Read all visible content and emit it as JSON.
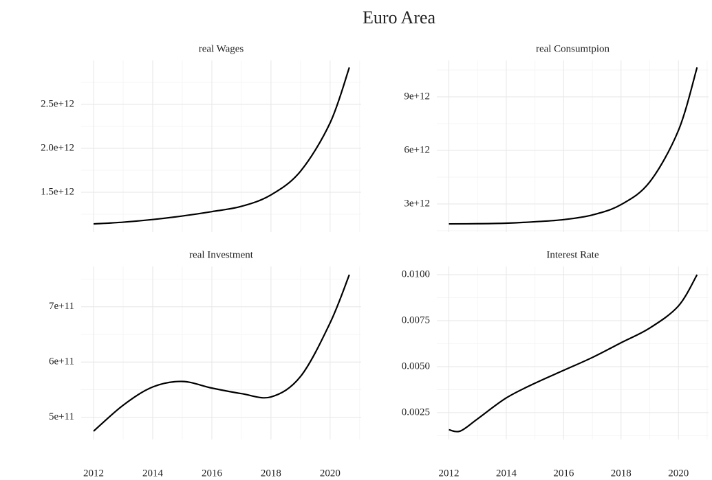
{
  "title": "Euro Area",
  "chart_data": [
    {
      "type": "line",
      "title": "real Wages",
      "x": [
        2012,
        2013,
        2014,
        2015,
        2016,
        2017,
        2018,
        2019,
        2020,
        2020.65
      ],
      "values": [
        1140000000000.0,
        1160000000000.0,
        1190000000000.0,
        1230000000000.0,
        1280000000000.0,
        1340000000000.0,
        1470000000000.0,
        1740000000000.0,
        2290000000000.0,
        2920000000000.0
      ],
      "color": "#000000",
      "xlim": [
        2011.58,
        2021.05
      ],
      "xticks": [
        2012,
        2014,
        2016,
        2018,
        2020
      ],
      "ylim": [
        1047000000000.0,
        3000000000000.0
      ],
      "yticks": [
        {
          "value": 1500000000000.0,
          "label": "1.5e+12"
        },
        {
          "value": 2000000000000.0,
          "label": "2.0e+12"
        },
        {
          "value": 2500000000000.0,
          "label": "2.5e+12"
        }
      ],
      "grid": true
    },
    {
      "type": "line",
      "title": "real Consumtpion",
      "x": [
        2012,
        2013,
        2014,
        2015,
        2016,
        2017,
        2018,
        2019,
        2020,
        2020.65
      ],
      "values": [
        1880000000000.0,
        1890000000000.0,
        1920000000000.0,
        2000000000000.0,
        2120000000000.0,
        2380000000000.0,
        2960000000000.0,
        4230000000000.0,
        7120000000000.0,
        10650000000000.0
      ],
      "color": "#000000",
      "xlim": [
        2011.58,
        2021.05
      ],
      "xticks": [
        2012,
        2014,
        2016,
        2018,
        2020
      ],
      "ylim": [
        1420000000000.0,
        11040000000000.0
      ],
      "yticks": [
        {
          "value": 3000000000000.0,
          "label": "3e+12"
        },
        {
          "value": 6000000000000.0,
          "label": "6e+12"
        },
        {
          "value": 9000000000000.0,
          "label": "9e+12"
        }
      ],
      "grid": true
    },
    {
      "type": "line",
      "title": "real Investment",
      "x": [
        2012,
        2013,
        2014,
        2015,
        2016,
        2017,
        2018,
        2019,
        2020,
        2020.65
      ],
      "values": [
        475000000000.0,
        522000000000.0,
        555000000000.0,
        565000000000.0,
        553000000000.0,
        543000000000.0,
        537000000000.0,
        574000000000.0,
        671000000000.0,
        758000000000.0
      ],
      "color": "#000000",
      "xlim": [
        2011.58,
        2021.05
      ],
      "xticks": [
        {
          "value": 2012,
          "label": "2012"
        },
        {
          "value": 2014,
          "label": "2014"
        },
        {
          "value": 2016,
          "label": "2016"
        },
        {
          "value": 2018,
          "label": "2018"
        },
        {
          "value": 2020,
          "label": "2020"
        }
      ],
      "ylim": [
        460000000000.0,
        773000000000.0
      ],
      "yticks": [
        {
          "value": 500000000000.0,
          "label": "5e+11"
        },
        {
          "value": 600000000000.0,
          "label": "6e+11"
        },
        {
          "value": 700000000000.0,
          "label": "7e+11"
        }
      ],
      "grid": true
    },
    {
      "type": "line",
      "title": "Interest Rate",
      "x": [
        2012,
        2012.4,
        2013,
        2014,
        2015,
        2016,
        2017,
        2018,
        2019,
        2020,
        2020.65
      ],
      "values": [
        0.00157,
        0.0015,
        0.00216,
        0.0033,
        0.0041,
        0.0048,
        0.0055,
        0.0063,
        0.0071,
        0.0083,
        0.01
      ],
      "color": "#000000",
      "xlim": [
        2011.58,
        2021.05
      ],
      "xticks": [
        {
          "value": 2012,
          "label": "2012"
        },
        {
          "value": 2014,
          "label": "2014"
        },
        {
          "value": 2016,
          "label": "2016"
        },
        {
          "value": 2018,
          "label": "2018"
        },
        {
          "value": 2020,
          "label": "2020"
        }
      ],
      "ylim": [
        0.00104,
        0.01045
      ],
      "yticks": [
        0.0025,
        {
          "value": 0.005,
          "label": "0.0050"
        },
        0.0075,
        {
          "value": 0.01,
          "label": "0.0100"
        }
      ],
      "grid": true
    }
  ]
}
